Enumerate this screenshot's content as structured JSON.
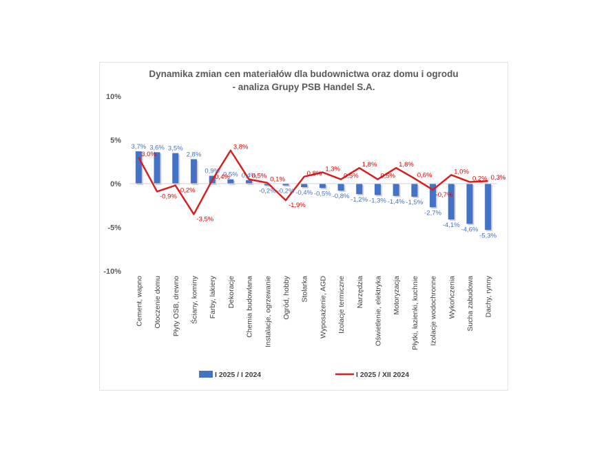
{
  "colors": {
    "bar": "#4472C4",
    "bar_shadow": "#7f7f7f",
    "line": "#D91E1E",
    "label_bar": "#4472C4",
    "label_line": "#E00000"
  },
  "chart_data": {
    "type": "bar",
    "title": [
      "Dynamika zmian cen materiałów dla budownictwa oraz domu i ogrodu",
      "- analiza Grupy PSB Handel S.A."
    ],
    "categories": [
      "Cement, wapno",
      "Otoczenie domu",
      "Płyty OSB, drewno",
      "Ściany, kominy",
      "Farby, lakiery",
      "Dekoracje",
      "Chemia budowlana",
      "Instalacje, ogrzewanie",
      "Ogród, hobby",
      "Stolarka",
      "Wyposażenie, AGD",
      "Izolacje termiczne",
      "Narzędzia",
      "Oświetlenie, elektryka",
      "Motoryzacja",
      "Płytki, łazienki, kuchnie",
      "Izolacje wodochronne",
      "Wykończenia",
      "Sucha zabudowa",
      "Dachy, rynny"
    ],
    "series": [
      {
        "name": "I 2025 / I 2024",
        "type": "bar",
        "values": [
          3.7,
          3.6,
          3.5,
          2.8,
          0.9,
          0.5,
          0.4,
          -0.2,
          -0.2,
          -0.4,
          -0.5,
          -0.8,
          -1.2,
          -1.3,
          -1.4,
          -1.5,
          -2.7,
          -4.1,
          -4.6,
          -5.3
        ],
        "labels": [
          "3,7%",
          "3,6%",
          "3,5%",
          "2,8%",
          "0,9%",
          "0,5%",
          "0,4%",
          "-0,2%",
          "-0,2%",
          "-0,4%",
          "-0,5%",
          "-0,8%",
          "-1,2%",
          "-1,3%",
          "-1,4%",
          "-1,5%",
          "-2,7%",
          "-4,1%",
          "-4,6%",
          "-5,3%"
        ]
      },
      {
        "name": "I 2025 / XII 2024",
        "type": "line",
        "values": [
          3.0,
          -0.9,
          -0.2,
          -3.5,
          0.4,
          3.8,
          0.5,
          0.1,
          -1.9,
          0.8,
          1.3,
          0.5,
          1.8,
          0.5,
          1.8,
          0.6,
          -0.7,
          1.0,
          0.2,
          0.3
        ],
        "labels": [
          "3,0%",
          "-0,9%",
          "-0,2%",
          "-3,5%",
          "0,4%",
          "3,8%",
          "0,5%",
          "0,1%",
          "-1,9%",
          "0,8%",
          "1,3%",
          "0,5%",
          "1,8%",
          "0,5%",
          "1,8%",
          "0,6%",
          "-0,7%",
          "1,0%",
          "0,2%",
          "0,3%"
        ]
      }
    ],
    "ylim": [
      -10,
      10
    ],
    "yticks": [
      10,
      5,
      0,
      -5,
      -10
    ],
    "ytick_labels": [
      "10%",
      "5%",
      "0%",
      "-5%",
      "-10%"
    ],
    "grid": false,
    "legend_position": "bottom"
  }
}
